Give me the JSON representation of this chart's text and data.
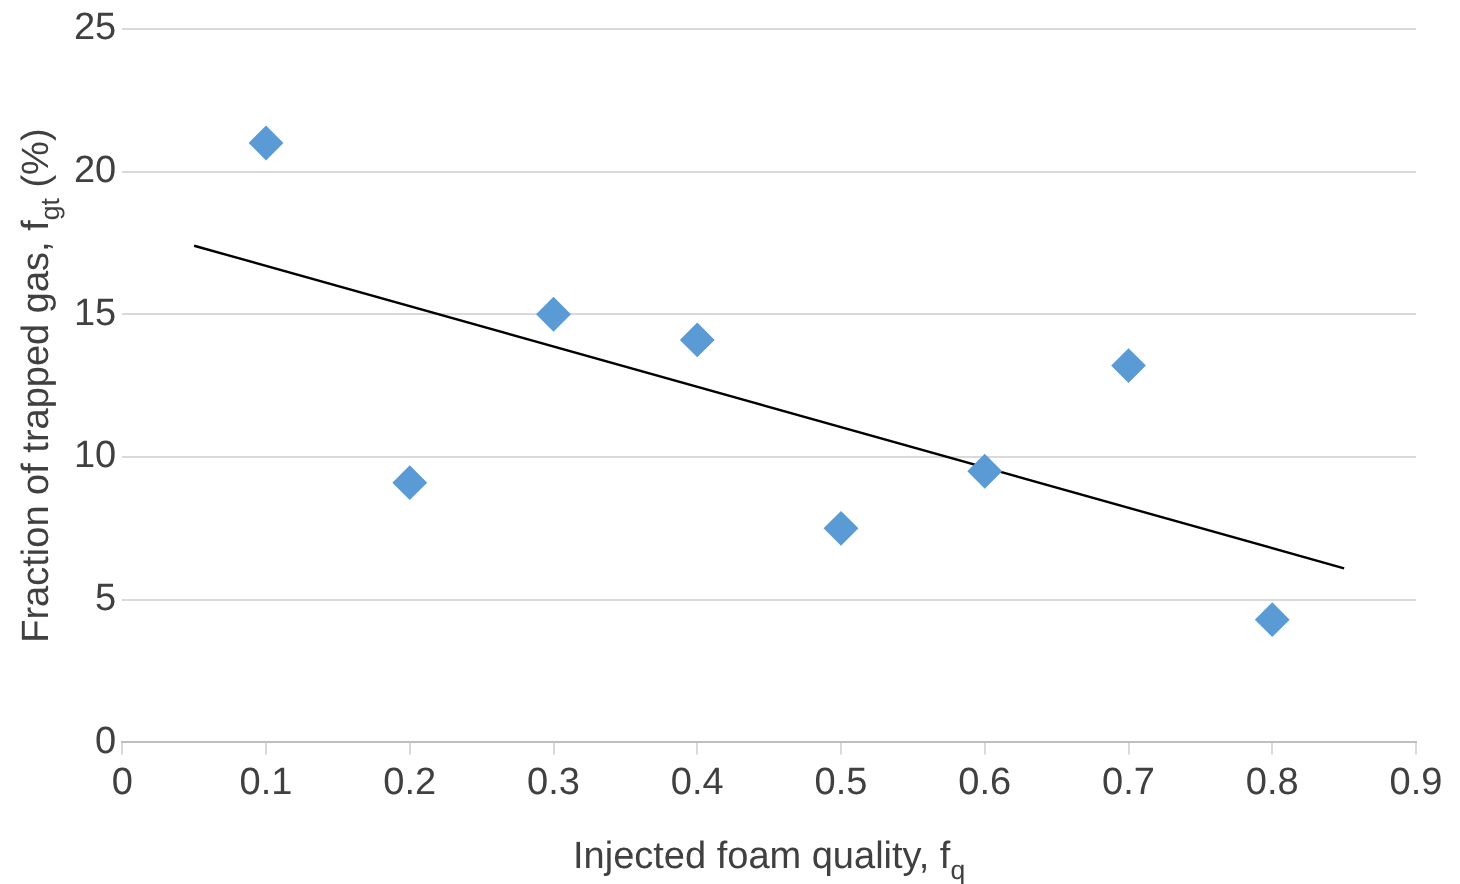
{
  "chart_data": {
    "type": "scatter",
    "xlabel": "Injected foam quality, f$_{q}$",
    "ylabel": "Fraction of trapped gas, f$_{gt}$ (%)",
    "series": [
      {
        "color": "#5b9bd5",
        "marker": "diamond",
        "x": [
          0.1,
          0.2,
          0.3,
          0.4,
          0.5,
          0.6,
          0.7,
          0.8
        ],
        "values": [
          21,
          9.1,
          15,
          14.1,
          7.5,
          9.5,
          13.2,
          4.3
        ]
      },
      {
        "type": "line",
        "color": "#000000",
        "marker": "none",
        "x": [
          0.05,
          0.85
        ],
        "values": [
          17.4,
          6.1
        ]
      }
    ],
    "xlim": [
      0,
      0.9
    ],
    "xticks": [
      0,
      0.1,
      0.2,
      0.3,
      0.4,
      0.5,
      0.6,
      0.7,
      0.8,
      0.9
    ],
    "ylim": [
      0,
      25
    ],
    "yticks": [
      0,
      5,
      10,
      15,
      20,
      25
    ],
    "grid": "y",
    "legend": false
  }
}
